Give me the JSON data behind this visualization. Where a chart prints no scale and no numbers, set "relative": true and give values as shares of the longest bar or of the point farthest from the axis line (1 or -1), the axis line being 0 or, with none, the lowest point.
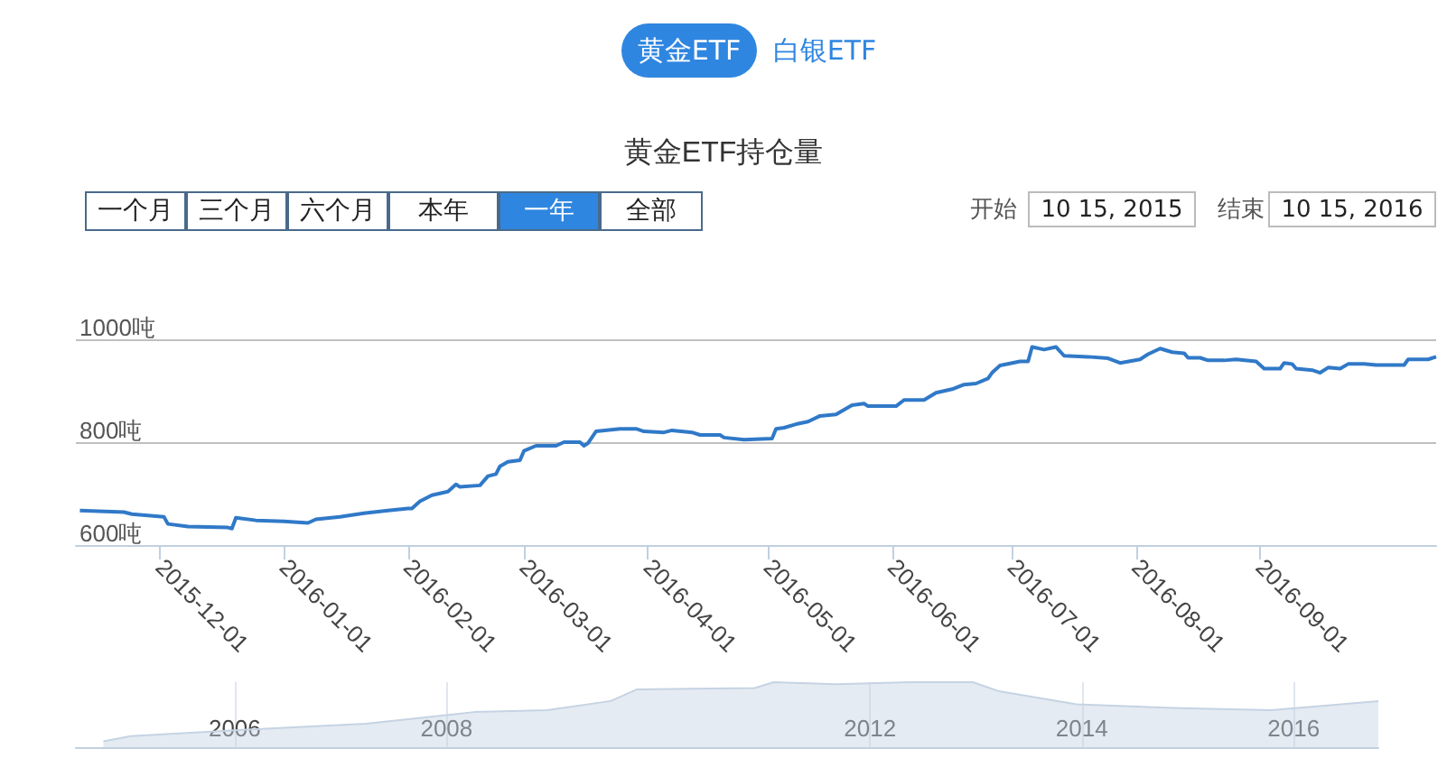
{
  "chart_data": [
    {
      "type": "line",
      "title": "黄金ETF持仓量",
      "annotations": [
        "黄金ETF",
        "白银ETF",
        "一个月",
        "三个月",
        "六个月",
        "本年",
        "一年",
        "全部",
        "开始",
        "10 15, 2015",
        "结束",
        "10 15, 2016"
      ],
      "x": [
        "2015-11-11",
        "2015-11-22",
        "2015-11-24",
        "2015-12-02",
        "2015-12-03",
        "2015-12-08",
        "2015-12-18",
        "2015-12-19",
        "2015-12-20",
        "2015-12-25",
        "2016-01-01",
        "2016-01-07",
        "2016-01-09",
        "2016-01-15",
        "2016-01-21",
        "2016-01-27",
        "2016-02-01",
        "2016-02-02",
        "2016-02-04",
        "2016-02-07",
        "2016-02-11",
        "2016-02-13",
        "2016-02-14",
        "2016-02-19",
        "2016-02-21",
        "2016-02-23",
        "2016-02-24",
        "2016-02-26",
        "2016-02-29",
        "2016-03-01",
        "2016-03-04",
        "2016-03-09",
        "2016-03-11",
        "2016-03-15",
        "2016-03-16",
        "2016-03-17",
        "2016-03-19",
        "2016-03-25",
        "2016-03-29",
        "2016-03-31",
        "2016-04-05",
        "2016-04-07",
        "2016-04-12",
        "2016-04-14",
        "2016-04-19",
        "2016-04-20",
        "2016-04-25",
        "2016-05-02",
        "2016-05-03",
        "2016-05-05",
        "2016-05-08",
        "2016-05-11",
        "2016-05-14",
        "2016-05-18",
        "2016-05-22",
        "2016-05-25",
        "2016-05-26",
        "2016-06-02",
        "2016-06-04",
        "2016-06-09",
        "2016-06-12",
        "2016-06-16",
        "2016-06-19",
        "2016-06-22",
        "2016-06-25",
        "2016-06-26",
        "2016-06-28",
        "2016-07-03",
        "2016-07-05",
        "2016-07-06",
        "2016-07-09",
        "2016-07-12",
        "2016-07-14",
        "2016-07-20",
        "2016-07-25",
        "2016-07-28",
        "2016-08-02",
        "2016-08-04",
        "2016-08-07",
        "2016-08-10",
        "2016-08-13",
        "2016-08-14",
        "2016-08-17",
        "2016-08-19",
        "2016-08-23",
        "2016-08-26",
        "2016-08-31",
        "2016-09-02",
        "2016-09-06",
        "2016-09-07",
        "2016-09-09",
        "2016-09-10",
        "2016-09-14",
        "2016-09-16",
        "2016-09-18",
        "2016-09-21",
        "2016-09-23",
        "2016-09-27",
        "2016-09-30",
        "2016-10-07",
        "2016-10-08",
        "2016-10-13",
        "2016-10-15"
      ],
      "values": [
        667,
        664,
        660,
        655,
        641,
        636,
        634,
        632,
        653,
        648,
        646,
        643,
        650,
        655,
        662,
        667,
        671,
        671,
        685,
        697,
        704,
        718,
        713,
        716,
        734,
        738,
        753,
        762,
        765,
        783,
        793,
        793,
        800,
        800,
        793,
        798,
        821,
        826,
        826,
        821,
        819,
        823,
        819,
        814,
        814,
        809,
        805,
        807,
        826,
        828,
        835,
        840,
        851,
        854,
        872,
        875,
        870,
        870,
        882,
        882,
        896,
        903,
        912,
        914,
        924,
        935,
        949,
        957,
        957,
        985,
        980,
        985,
        968,
        966,
        963,
        954,
        961,
        971,
        982,
        975,
        973,
        964,
        964,
        959,
        959,
        961,
        957,
        943,
        943,
        954,
        952,
        943,
        940,
        935,
        945,
        943,
        952,
        952,
        950,
        950,
        961,
        961,
        966
      ],
      "color": "#3079c8",
      "marker": "none",
      "grid": "y",
      "xlim": [
        "2015-11-10",
        "2016-10-15"
      ],
      "xticks": [
        "2015-12-01",
        "2016-01-01",
        "2016-02-01",
        "2016-03-01",
        "2016-04-01",
        "2016-05-01",
        "2016-06-01",
        "2016-07-01",
        "2016-08-01",
        "2016-09-01"
      ],
      "ylim": [
        600,
        1000
      ],
      "yticks": [
        {
          "value": 600,
          "label": "600吨"
        },
        {
          "value": 800,
          "label": "800吨"
        },
        {
          "value": 1000,
          "label": "1000吨"
        }
      ]
    },
    {
      "type": "area",
      "relative": true,
      "color": "#c5d3e3",
      "x": [
        2004.76,
        2005.02,
        2006.0,
        2007.24,
        2008.26,
        2008.95,
        2009.55,
        2009.8,
        2010.91,
        2011.09,
        2011.68,
        2012.37,
        2012.97,
        2013.22,
        2013.95,
        2014.93,
        2015.79,
        2016.8
      ],
      "values": [
        0.09,
        0.17,
        0.26,
        0.36,
        0.54,
        0.57,
        0.71,
        0.89,
        0.91,
        1,
        0.97,
        1,
        1,
        0.86,
        0.66,
        0.6,
        0.57,
        0.71
      ],
      "xlim": [
        2004.5,
        2016.8
      ],
      "marker": "none",
      "xticks": [
        2006,
        2008,
        2012,
        2014,
        2016
      ],
      "tick_labels": "x",
      "grid": "x"
    }
  ]
}
